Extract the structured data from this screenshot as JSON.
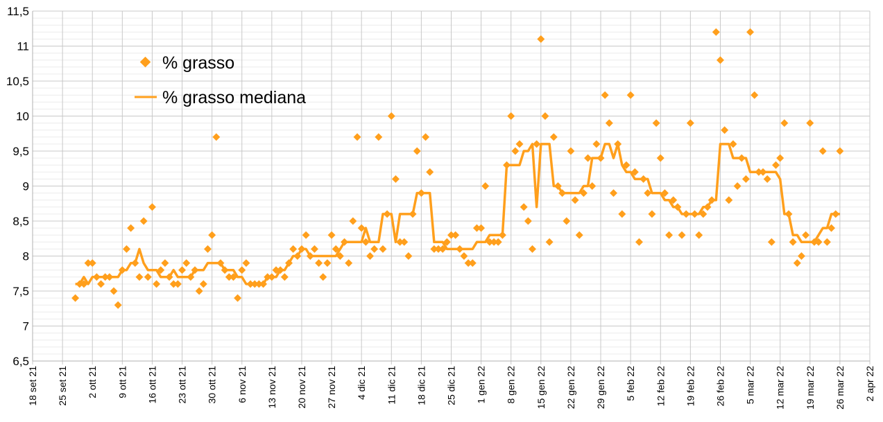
{
  "chart_data": {
    "type": "scatter",
    "title": "",
    "xlabel": "",
    "ylabel": "",
    "ylim": [
      6.5,
      11.5
    ],
    "y_step": 0.5,
    "y_ticks": [
      "6,5",
      "7",
      "7,5",
      "8",
      "8,5",
      "9",
      "9,5",
      "10",
      "10,5",
      "11",
      "11,5"
    ],
    "x_range_days": [
      0,
      196
    ],
    "x_unit": "days since 18 set 21",
    "x_ticks": [
      "18 set 21",
      "25 set 21",
      "2 ott 21",
      "9 ott 21",
      "16 ott 21",
      "23 ott 21",
      "30 ott 21",
      "6 nov 21",
      "13 nov 21",
      "20 nov 21",
      "27 nov 21",
      "4 dic 21",
      "11 dic 21",
      "18 dic 21",
      "25 dic 21",
      "1 gen 22",
      "8 gen 22",
      "15 gen 22",
      "22 gen 22",
      "29 gen 22",
      "5 feb 22",
      "12 feb 22",
      "19 feb 22",
      "26 feb 22",
      "5 mar 22",
      "12 mar 22",
      "19 mar 22",
      "26 mar 22",
      "2 apr 22"
    ],
    "grid": true,
    "legend_position": "top-left",
    "color": "#ff9f1c",
    "series": [
      {
        "name": "% grasso",
        "kind": "scatter-diamond",
        "points": [
          [
            10,
            7.4
          ],
          [
            11,
            7.6
          ],
          [
            12,
            7.6
          ],
          [
            13,
            7.9
          ],
          [
            14,
            7.9
          ],
          [
            15,
            7.7
          ],
          [
            16,
            7.6
          ],
          [
            17,
            7.7
          ],
          [
            18,
            7.7
          ],
          [
            19,
            7.5
          ],
          [
            20,
            7.3
          ],
          [
            21,
            7.8
          ],
          [
            22,
            8.1
          ],
          [
            23,
            8.4
          ],
          [
            24,
            7.9
          ],
          [
            25,
            7.7
          ],
          [
            26,
            8.5
          ],
          [
            27,
            7.7
          ],
          [
            28,
            8.7
          ],
          [
            29,
            7.6
          ],
          [
            30,
            7.8
          ],
          [
            31,
            7.9
          ],
          [
            32,
            7.7
          ],
          [
            33,
            7.6
          ],
          [
            34,
            7.6
          ],
          [
            35,
            7.8
          ],
          [
            36,
            7.9
          ],
          [
            37,
            7.7
          ],
          [
            38,
            7.8
          ],
          [
            39,
            7.5
          ],
          [
            40,
            7.6
          ],
          [
            41,
            8.1
          ],
          [
            42,
            8.3
          ],
          [
            43,
            9.7
          ],
          [
            44,
            7.9
          ],
          [
            45,
            7.8
          ],
          [
            46,
            7.7
          ],
          [
            47,
            7.7
          ],
          [
            48,
            7.4
          ],
          [
            49,
            7.8
          ],
          [
            50,
            7.9
          ],
          [
            51,
            7.6
          ],
          [
            52,
            7.6
          ],
          [
            53,
            7.6
          ],
          [
            54,
            7.6
          ],
          [
            55,
            7.7
          ],
          [
            56,
            7.7
          ],
          [
            57,
            7.8
          ],
          [
            58,
            7.8
          ],
          [
            59,
            7.7
          ],
          [
            60,
            7.9
          ],
          [
            61,
            8.1
          ],
          [
            62,
            8.0
          ],
          [
            63,
            8.1
          ],
          [
            64,
            8.3
          ],
          [
            65,
            8.0
          ],
          [
            66,
            8.1
          ],
          [
            67,
            7.9
          ],
          [
            68,
            7.7
          ],
          [
            69,
            7.9
          ],
          [
            70,
            8.3
          ],
          [
            71,
            8.1
          ],
          [
            72,
            8.0
          ],
          [
            73,
            8.2
          ],
          [
            74,
            7.9
          ],
          [
            75,
            8.5
          ],
          [
            76,
            9.7
          ],
          [
            77,
            8.4
          ],
          [
            78,
            8.2
          ],
          [
            79,
            8.0
          ],
          [
            80,
            8.1
          ],
          [
            81,
            9.7
          ],
          [
            82,
            8.1
          ],
          [
            83,
            8.6
          ],
          [
            84,
            10.0
          ],
          [
            85,
            9.1
          ],
          [
            86,
            8.2
          ],
          [
            87,
            8.2
          ],
          [
            88,
            8.0
          ],
          [
            89,
            8.6
          ],
          [
            90,
            9.5
          ],
          [
            91,
            8.9
          ],
          [
            92,
            9.7
          ],
          [
            93,
            9.2
          ],
          [
            94,
            8.1
          ],
          [
            95,
            8.1
          ],
          [
            96,
            8.1
          ],
          [
            97,
            8.2
          ],
          [
            98,
            8.3
          ],
          [
            99,
            8.3
          ],
          [
            100,
            8.1
          ],
          [
            101,
            8.0
          ],
          [
            102,
            7.9
          ],
          [
            103,
            7.9
          ],
          [
            104,
            8.4
          ],
          [
            105,
            8.4
          ],
          [
            106,
            9.0
          ],
          [
            107,
            8.2
          ],
          [
            108,
            8.2
          ],
          [
            109,
            8.2
          ],
          [
            110,
            8.3
          ],
          [
            111,
            9.3
          ],
          [
            112,
            10.0
          ],
          [
            113,
            9.5
          ],
          [
            114,
            9.6
          ],
          [
            115,
            8.7
          ],
          [
            116,
            8.5
          ],
          [
            117,
            8.1
          ],
          [
            118,
            9.6
          ],
          [
            119,
            11.1
          ],
          [
            120,
            10.0
          ],
          [
            121,
            8.2
          ],
          [
            122,
            9.7
          ],
          [
            123,
            9.0
          ],
          [
            124,
            8.9
          ],
          [
            125,
            8.5
          ],
          [
            126,
            9.5
          ],
          [
            127,
            8.8
          ],
          [
            128,
            8.3
          ],
          [
            129,
            8.9
          ],
          [
            130,
            9.4
          ],
          [
            131,
            9.0
          ],
          [
            132,
            9.6
          ],
          [
            133,
            9.4
          ],
          [
            134,
            10.3
          ],
          [
            135,
            9.9
          ],
          [
            136,
            8.9
          ],
          [
            137,
            9.6
          ],
          [
            138,
            8.6
          ],
          [
            139,
            9.3
          ],
          [
            140,
            10.3
          ],
          [
            141,
            9.2
          ],
          [
            142,
            8.2
          ],
          [
            143,
            9.1
          ],
          [
            144,
            8.9
          ],
          [
            145,
            8.6
          ],
          [
            146,
            9.9
          ],
          [
            147,
            9.4
          ],
          [
            148,
            8.9
          ],
          [
            149,
            8.3
          ],
          [
            150,
            8.8
          ],
          [
            151,
            8.7
          ],
          [
            152,
            8.3
          ],
          [
            153,
            8.6
          ],
          [
            154,
            9.9
          ],
          [
            155,
            8.6
          ],
          [
            156,
            8.3
          ],
          [
            157,
            8.6
          ],
          [
            158,
            8.7
          ],
          [
            159,
            8.8
          ],
          [
            160,
            11.2
          ],
          [
            161,
            10.8
          ],
          [
            162,
            9.8
          ],
          [
            163,
            8.8
          ],
          [
            164,
            9.6
          ],
          [
            165,
            9.0
          ],
          [
            166,
            9.4
          ],
          [
            167,
            9.1
          ],
          [
            168,
            11.2
          ],
          [
            169,
            10.3
          ],
          [
            170,
            9.2
          ],
          [
            171,
            9.2
          ],
          [
            172,
            9.1
          ],
          [
            173,
            8.2
          ],
          [
            174,
            9.3
          ],
          [
            175,
            9.4
          ],
          [
            176,
            9.9
          ],
          [
            177,
            8.6
          ],
          [
            178,
            8.2
          ],
          [
            179,
            7.9
          ],
          [
            180,
            8.0
          ],
          [
            181,
            8.3
          ],
          [
            182,
            9.9
          ],
          [
            183,
            8.2
          ],
          [
            184,
            8.2
          ],
          [
            185,
            9.5
          ],
          [
            186,
            8.2
          ],
          [
            187,
            8.4
          ],
          [
            188,
            8.6
          ],
          [
            189,
            9.5
          ]
        ]
      },
      {
        "name": "% grasso mediana",
        "kind": "line",
        "rolling_median_window": 7
      }
    ]
  }
}
